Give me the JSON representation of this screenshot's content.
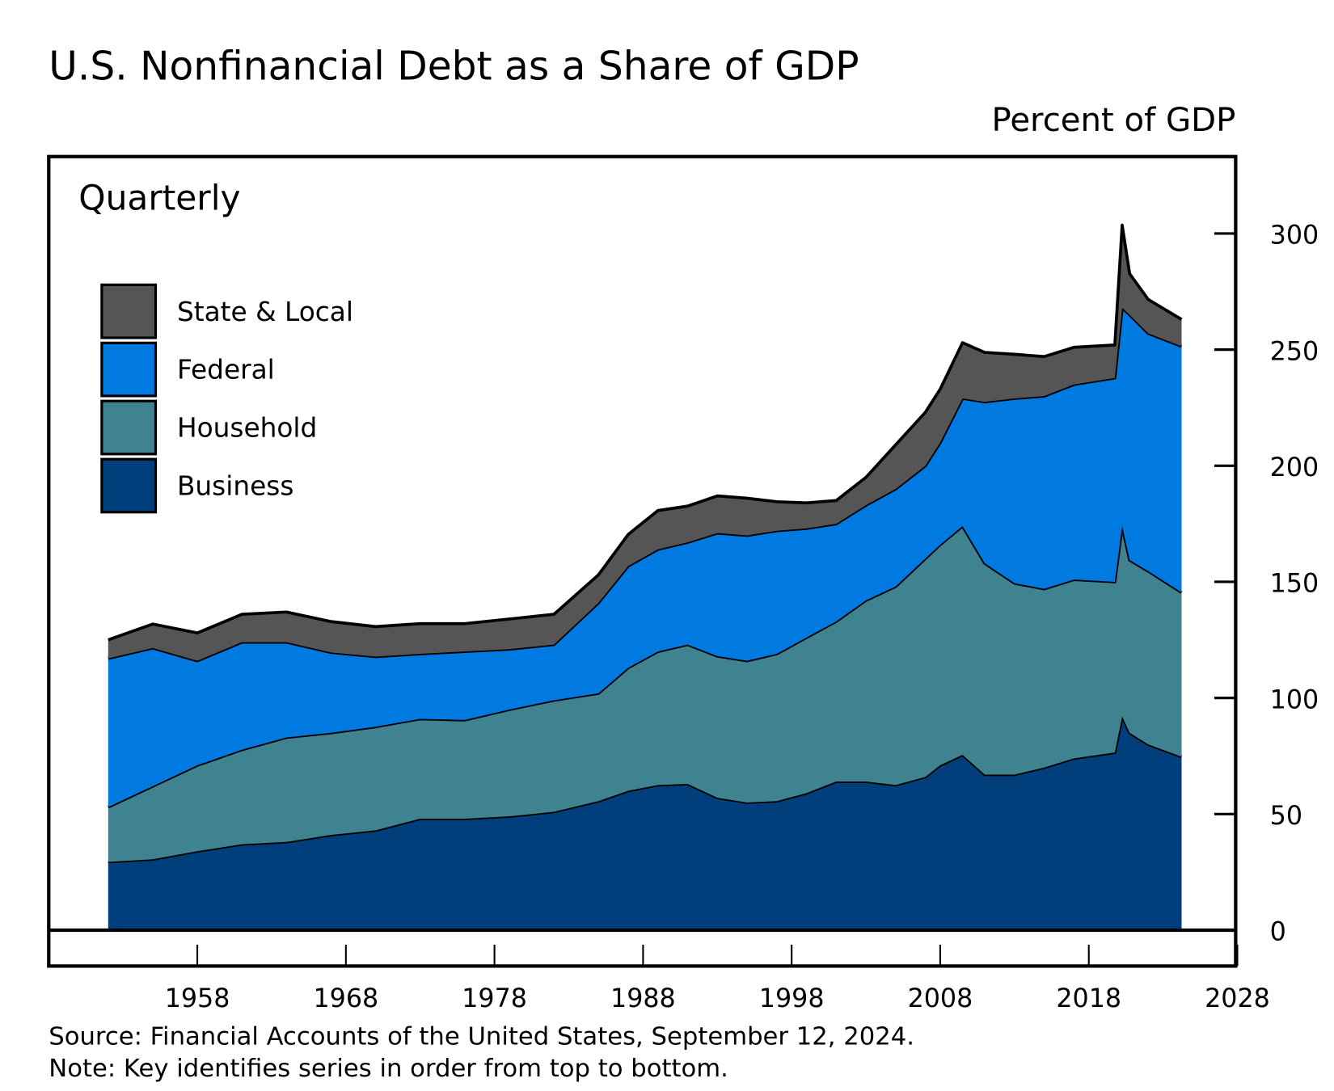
{
  "chart_data": {
    "type": "area",
    "stacked": true,
    "title": "U.S. Nonfinancial Debt as a Share of GDP",
    "ylabel": "Percent of GDP",
    "frequency_label": "Quarterly",
    "ylim": [
      0,
      300
    ],
    "yticks": [
      0,
      50,
      100,
      150,
      200,
      250,
      300
    ],
    "xlim": [
      1948,
      2028
    ],
    "xticks": [
      1958,
      1968,
      1978,
      1988,
      1998,
      2008,
      2018,
      2028
    ],
    "grid": false,
    "legend_position": "top-left",
    "x": [
      1952,
      1955,
      1958,
      1961,
      1964,
      1967,
      1970,
      1973,
      1976,
      1979,
      1982,
      1985,
      1987,
      1989,
      1991,
      1993,
      1995,
      1997,
      1999,
      2001,
      2003,
      2005,
      2007,
      2008,
      2009.5,
      2011,
      2013,
      2015,
      2017,
      2019.75,
      2020.25,
      2020.75,
      2022,
      2024.25
    ],
    "series": [
      {
        "name": "Business",
        "color": "#003f7c",
        "values": [
          29.4,
          30.5,
          34,
          37,
          38,
          41,
          43,
          48,
          48,
          49,
          51,
          55.6,
          60,
          62.5,
          63,
          57,
          55,
          55.6,
          59,
          64,
          64,
          62.5,
          66,
          71,
          75.5,
          67,
          67,
          70,
          74,
          76.5,
          92,
          85,
          80,
          74.7
        ]
      },
      {
        "name": "Household",
        "color": "#3f8290",
        "values": [
          23.6,
          31.5,
          37,
          40.7,
          45,
          44,
          44.6,
          43,
          42.5,
          46,
          48,
          46.4,
          53,
          57.5,
          60,
          61,
          61,
          63.4,
          67,
          69,
          78,
          85.5,
          94,
          95,
          98.5,
          91,
          82.4,
          77,
          77,
          73.5,
          82,
          74.4,
          74.6,
          70.7
        ]
      },
      {
        "name": "Federal",
        "color": "#0079e0",
        "values": [
          64,
          59.5,
          45,
          46.3,
          41,
          34.6,
          30.2,
          28,
          29.5,
          26,
          24,
          39,
          43.8,
          44,
          44,
          53,
          54,
          53,
          47,
          42,
          41,
          42,
          40,
          44,
          55,
          69.5,
          79.6,
          83,
          84,
          87.8,
          94,
          105.6,
          102.4,
          106
        ]
      },
      {
        "name": "State & Local",
        "color": "#555555",
        "values": [
          8,
          10.3,
          12,
          12,
          13,
          13.3,
          12.9,
          13,
          12,
          13,
          13,
          12,
          13.6,
          16.7,
          15.6,
          16,
          16,
          12.5,
          11,
          10,
          12,
          19,
          23,
          23,
          24,
          21.3,
          19,
          17,
          16,
          14.2,
          35.6,
          17.7,
          14.6,
          11.6
        ]
      }
    ],
    "legend": [
      "State & Local",
      "Federal",
      "Household",
      "Business"
    ],
    "source": "Source: Financial Accounts of the United States, September 12, 2024.",
    "note": "Note: Key identifies series in order from top to bottom."
  }
}
